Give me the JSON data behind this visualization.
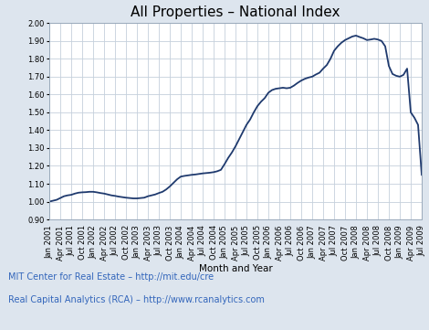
{
  "title": "All Properties – National Index",
  "xlabel": "Month and Year",
  "ylabel": "",
  "ylim": [
    0.9,
    2.0
  ],
  "yticks": [
    0.9,
    1.0,
    1.1,
    1.2,
    1.3,
    1.4,
    1.5,
    1.6,
    1.7,
    1.8,
    1.9,
    2.0
  ],
  "line_color": "#1F3A6E",
  "line_width": 1.3,
  "background_color": "#DDE5EE",
  "plot_bg_color": "#FFFFFF",
  "grid_color": "#C5D0DC",
  "title_fontsize": 11,
  "label_fontsize": 7.5,
  "tick_fontsize": 6.0,
  "footer_line1": "MIT Center for Real Estate – http://mit.edu/cre",
  "footer_line2": "Real Capital Analytics (RCA) – http://www.rcanalytics.com",
  "footer_color": "#3366BB",
  "tick_labels": [
    "Jan 2001",
    "Apr 2001",
    "Jul 2001",
    "Oct 2001",
    "Jan 2002",
    "Apr 2002",
    "Jul 2002",
    "Oct 2002",
    "Jan 2003",
    "Apr 2003",
    "Jul 2003",
    "Oct 2003",
    "Jan 2004",
    "Apr 2004",
    "Jul 2004",
    "Oct 2004",
    "Jan 2005",
    "Apr 2005",
    "Jul 2005",
    "Oct 2005",
    "Jan 2006",
    "Apr 2006",
    "Jul 2006",
    "Oct 2006",
    "Jan 2007",
    "Apr 2007",
    "Jul 2007",
    "Oct 2007",
    "Jan 2008",
    "Apr 2008",
    "Jul 2008",
    "Oct 2008",
    "Jan 2009",
    "Apr 2009",
    "Jul 2009"
  ],
  "values_monthly": [
    1.0,
    1.005,
    1.01,
    1.02,
    1.03,
    1.035,
    1.038,
    1.045,
    1.05,
    1.052,
    1.053,
    1.055,
    1.055,
    1.052,
    1.048,
    1.045,
    1.04,
    1.035,
    1.032,
    1.028,
    1.025,
    1.022,
    1.02,
    1.018,
    1.018,
    1.02,
    1.022,
    1.03,
    1.035,
    1.04,
    1.048,
    1.055,
    1.068,
    1.085,
    1.105,
    1.125,
    1.14,
    1.144,
    1.147,
    1.15,
    1.152,
    1.155,
    1.158,
    1.16,
    1.162,
    1.165,
    1.17,
    1.178,
    1.21,
    1.245,
    1.275,
    1.31,
    1.35,
    1.39,
    1.43,
    1.46,
    1.5,
    1.535,
    1.56,
    1.58,
    1.61,
    1.625,
    1.632,
    1.635,
    1.638,
    1.635,
    1.638,
    1.65,
    1.665,
    1.678,
    1.688,
    1.695,
    1.7,
    1.712,
    1.722,
    1.745,
    1.765,
    1.8,
    1.845,
    1.87,
    1.89,
    1.905,
    1.915,
    1.925,
    1.93,
    1.922,
    1.915,
    1.905,
    1.908,
    1.912,
    1.908,
    1.9,
    1.87,
    1.76,
    1.715,
    1.705,
    1.7,
    1.71,
    1.745,
    1.5,
    1.47,
    1.43,
    1.15
  ]
}
